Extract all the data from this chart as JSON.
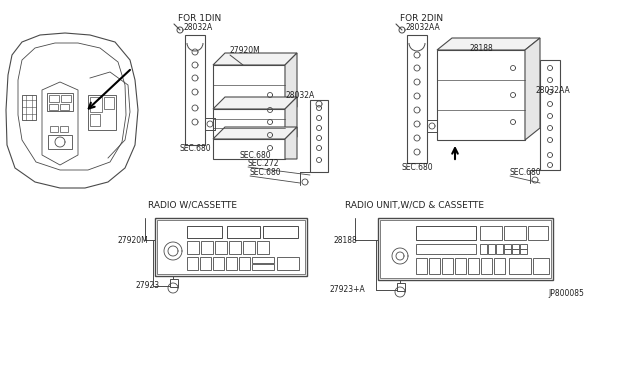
{
  "bg_color": "#ffffff",
  "lc": "#4a4a4a",
  "lc_thin": "#666666",
  "labels": {
    "for_1din": "FOR 1DIN",
    "for_2din": "FOR 2DIN",
    "radio_cassette": "RADIO W/CASSETTE",
    "radio_cd": "RADIO UNIT,W/CD & CASSETTE",
    "p28032A_a": "28032A",
    "p27920M": "27920M",
    "p28032A_b": "28032A",
    "p28032AA_a": "28032AA",
    "p28188_top": "28188",
    "p28032AA_b": "28032AA",
    "sec680_1": "SEC.680",
    "sec680_2": "SEC.680",
    "sec272": "SEC.272",
    "sec680_3": "SEC.680",
    "sec680_4": "SEC.680",
    "sec680_5": "SEC.680",
    "l27920M": "27920M",
    "l27923": "27923",
    "l28188": "28188",
    "l27923A": "27923+A",
    "diagram_id": "JP800085"
  },
  "fs": 5.5,
  "fm": 6.5
}
